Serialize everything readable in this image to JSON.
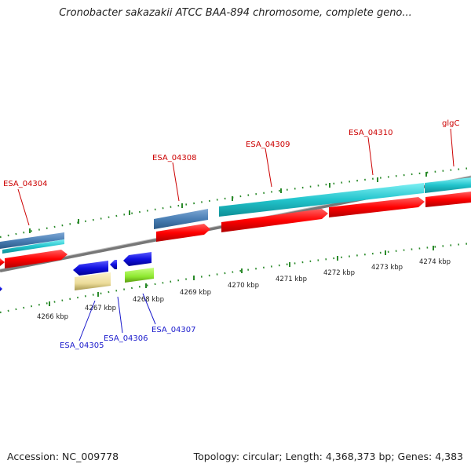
{
  "title": "Cronobacter sakazakii ATCC BAA-894 chromosome, complete geno...",
  "footer": {
    "accession": "Accession: NC_009778",
    "topology": "Topology: circular; Length: 4,368,373 bp; Genes: 4,383"
  },
  "forward_genes": [
    {
      "name": "ESA_04304"
    },
    {
      "name": "ESA_04308"
    },
    {
      "name": "ESA_04309"
    },
    {
      "name": "ESA_04310"
    },
    {
      "name": "glgC"
    }
  ],
  "reverse_genes": [
    {
      "name": "ESA_04305"
    },
    {
      "name": "ESA_04306"
    },
    {
      "name": "ESA_04307"
    }
  ],
  "scale_labels": [
    "4266 kbp",
    "4267 kbp",
    "4268 kbp",
    "4269 kbp",
    "4270 kbp",
    "4271 kbp",
    "4272 kbp",
    "4273 kbp",
    "4274 kbp"
  ],
  "colors": {
    "forward_label": "#cc0000",
    "reverse_label": "#1a1acc",
    "cds": "#ff0000",
    "gene_cyan": "#22c4cc",
    "gene_steelblue": "#4a7fb5",
    "reverse_blue": "#1010e0",
    "reverse_khaki": "#ecdc9a",
    "reverse_green": "#8ee830",
    "backbone": "#888888",
    "tick": "#2a8a2a"
  }
}
